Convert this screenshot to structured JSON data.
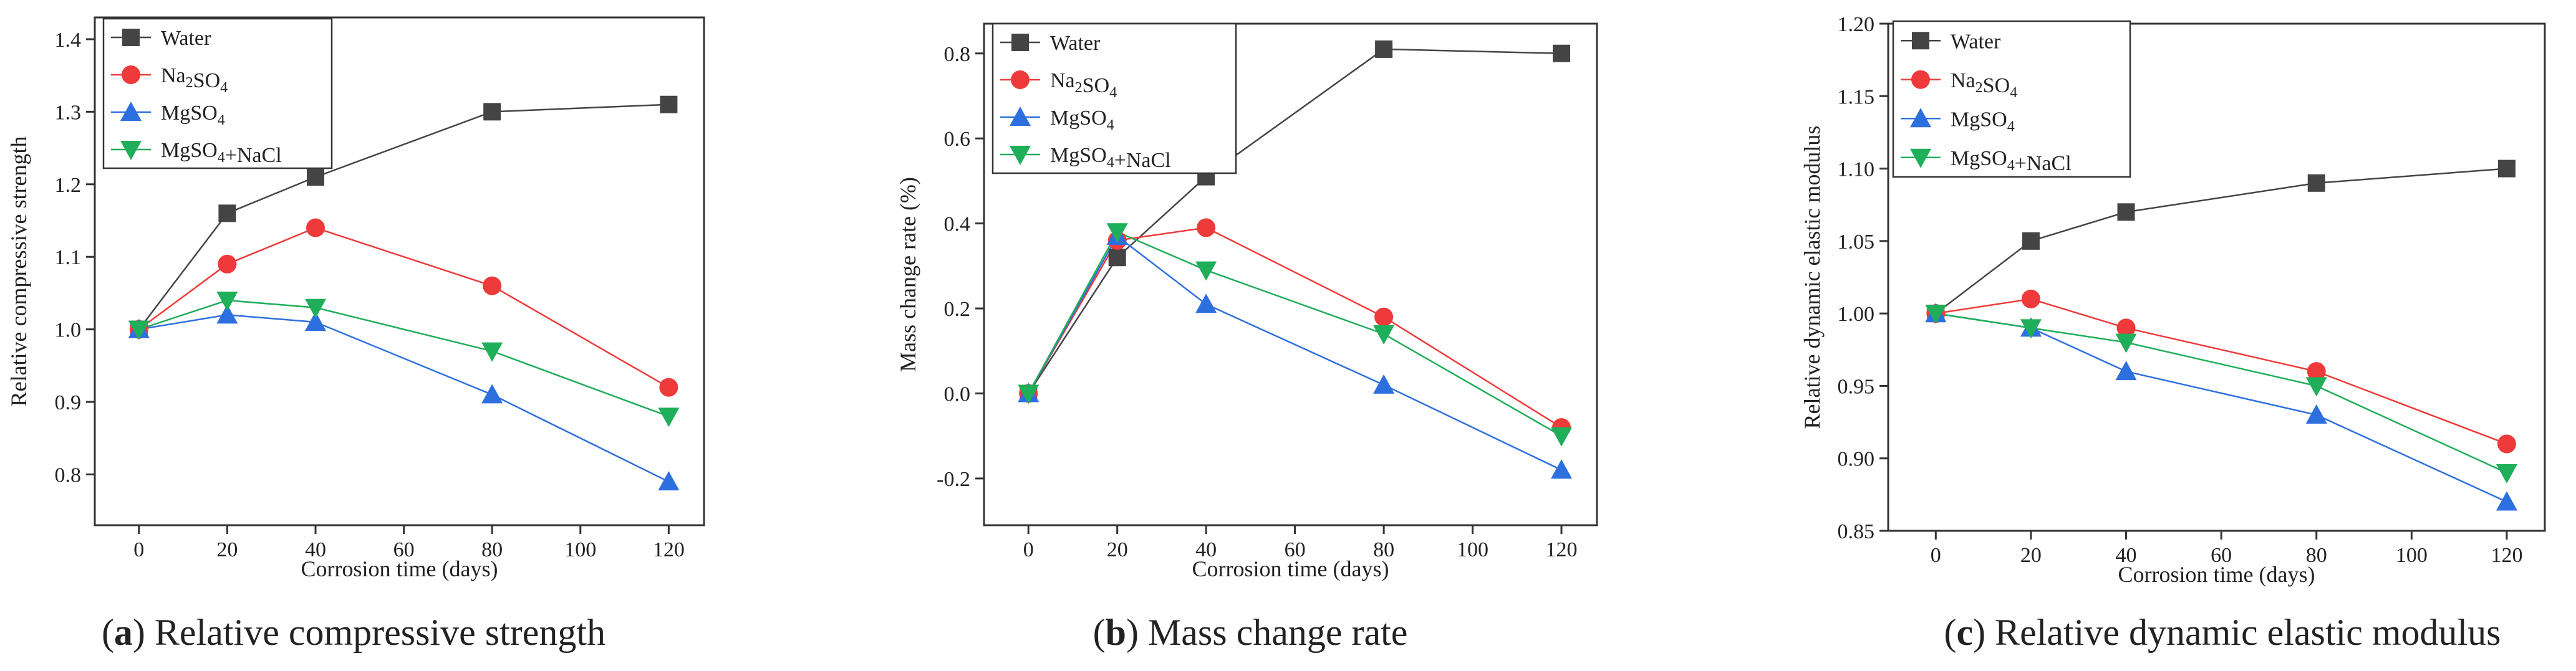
{
  "series_styles": [
    {
      "name": "Water",
      "color": "#444444",
      "marker": "square"
    },
    {
      "name": "Na2SO4",
      "color": "#ee3a3a",
      "marker": "circle"
    },
    {
      "name": "MgSO4",
      "color": "#2e6fe0",
      "marker": "triangle-up"
    },
    {
      "name": "MgSO4+NaCl",
      "color": "#1fae5a",
      "marker": "triangle-down"
    }
  ],
  "legend_labels": [
    {
      "main": "Water",
      "sub": "",
      "tail": ""
    },
    {
      "main": "Na",
      "sub": "2",
      "tail": "SO",
      "sub2": "4",
      "tail2": ""
    },
    {
      "main": "MgSO",
      "sub": "4",
      "tail": ""
    },
    {
      "main": "MgSO",
      "sub": "4",
      "tail": "+NaCl"
    }
  ],
  "chart_data": [
    {
      "type": "line",
      "caption_letter": "a",
      "caption_text": " Relative compressive strength",
      "xlabel": "Corrosion time (days)",
      "ylabel": "Relative compressive strength",
      "xlim": [
        -10,
        128
      ],
      "ylim": [
        0.73,
        1.43
      ],
      "xticks": [
        0,
        20,
        40,
        60,
        80,
        100,
        120
      ],
      "yticks": [
        0.8,
        0.9,
        1.0,
        1.1,
        1.2,
        1.3,
        1.4
      ],
      "ytick_labels": [
        "0.8",
        "0.9",
        "1.0",
        "1.1",
        "1.2",
        "1.3",
        "1.4"
      ],
      "x": [
        0,
        20,
        40,
        80,
        120
      ],
      "series": [
        {
          "name": "Water",
          "values": [
            1.0,
            1.16,
            1.21,
            1.3,
            1.31
          ]
        },
        {
          "name": "Na2SO4",
          "values": [
            1.0,
            1.09,
            1.14,
            1.06,
            0.92
          ]
        },
        {
          "name": "MgSO4",
          "values": [
            1.0,
            1.02,
            1.01,
            0.91,
            0.79
          ]
        },
        {
          "name": "MgSO4+NaCl",
          "values": [
            1.0,
            1.04,
            1.03,
            0.97,
            0.88
          ]
        }
      ]
    },
    {
      "type": "line",
      "caption_letter": "b",
      "caption_text": " Mass change rate",
      "xlabel": "Corrosion time (days)",
      "ylabel": "Mass change rate (%)",
      "xlim": [
        -10,
        128
      ],
      "ylim": [
        -0.31,
        0.87
      ],
      "xticks": [
        0,
        20,
        40,
        60,
        80,
        100,
        120
      ],
      "yticks": [
        -0.2,
        0.0,
        0.2,
        0.4,
        0.6,
        0.8
      ],
      "ytick_labels": [
        "-0.2",
        "0.0",
        "0.2",
        "0.4",
        "0.6",
        "0.8"
      ],
      "x": [
        0,
        20,
        40,
        80,
        120
      ],
      "series": [
        {
          "name": "Water",
          "values": [
            0.0,
            0.32,
            0.51,
            0.81,
            0.8
          ]
        },
        {
          "name": "Na2SO4",
          "values": [
            0.0,
            0.36,
            0.39,
            0.18,
            -0.08
          ]
        },
        {
          "name": "MgSO4",
          "values": [
            0.0,
            0.37,
            0.21,
            0.02,
            -0.18
          ]
        },
        {
          "name": "MgSO4+NaCl",
          "values": [
            0.0,
            0.38,
            0.29,
            0.14,
            -0.1
          ]
        }
      ]
    },
    {
      "type": "line",
      "caption_letter": "c",
      "caption_text": " Relative dynamic elastic modulus",
      "xlabel": "Corrosion time  (days)",
      "ylabel": "Relative dynamic elastic modulus",
      "xlim": [
        -10,
        128
      ],
      "ylim": [
        0.85,
        1.2
      ],
      "xticks": [
        0,
        20,
        40,
        60,
        80,
        100,
        120
      ],
      "yticks": [
        0.85,
        0.9,
        0.95,
        1.0,
        1.05,
        1.1,
        1.15,
        1.2
      ],
      "ytick_labels": [
        "0.85",
        "0.90",
        "0.95",
        "1.00",
        "1.05",
        "1.10",
        "1.15",
        "1.20"
      ],
      "x": [
        0,
        20,
        40,
        80,
        120
      ],
      "series": [
        {
          "name": "Water",
          "values": [
            1.0,
            1.05,
            1.07,
            1.09,
            1.1
          ]
        },
        {
          "name": "Na2SO4",
          "values": [
            1.0,
            1.01,
            0.99,
            0.96,
            0.91
          ]
        },
        {
          "name": "MgSO4",
          "values": [
            1.0,
            0.99,
            0.96,
            0.93,
            0.87
          ]
        },
        {
          "name": "MgSO4+NaCl",
          "values": [
            1.0,
            0.99,
            0.98,
            0.95,
            0.89
          ]
        }
      ]
    }
  ]
}
